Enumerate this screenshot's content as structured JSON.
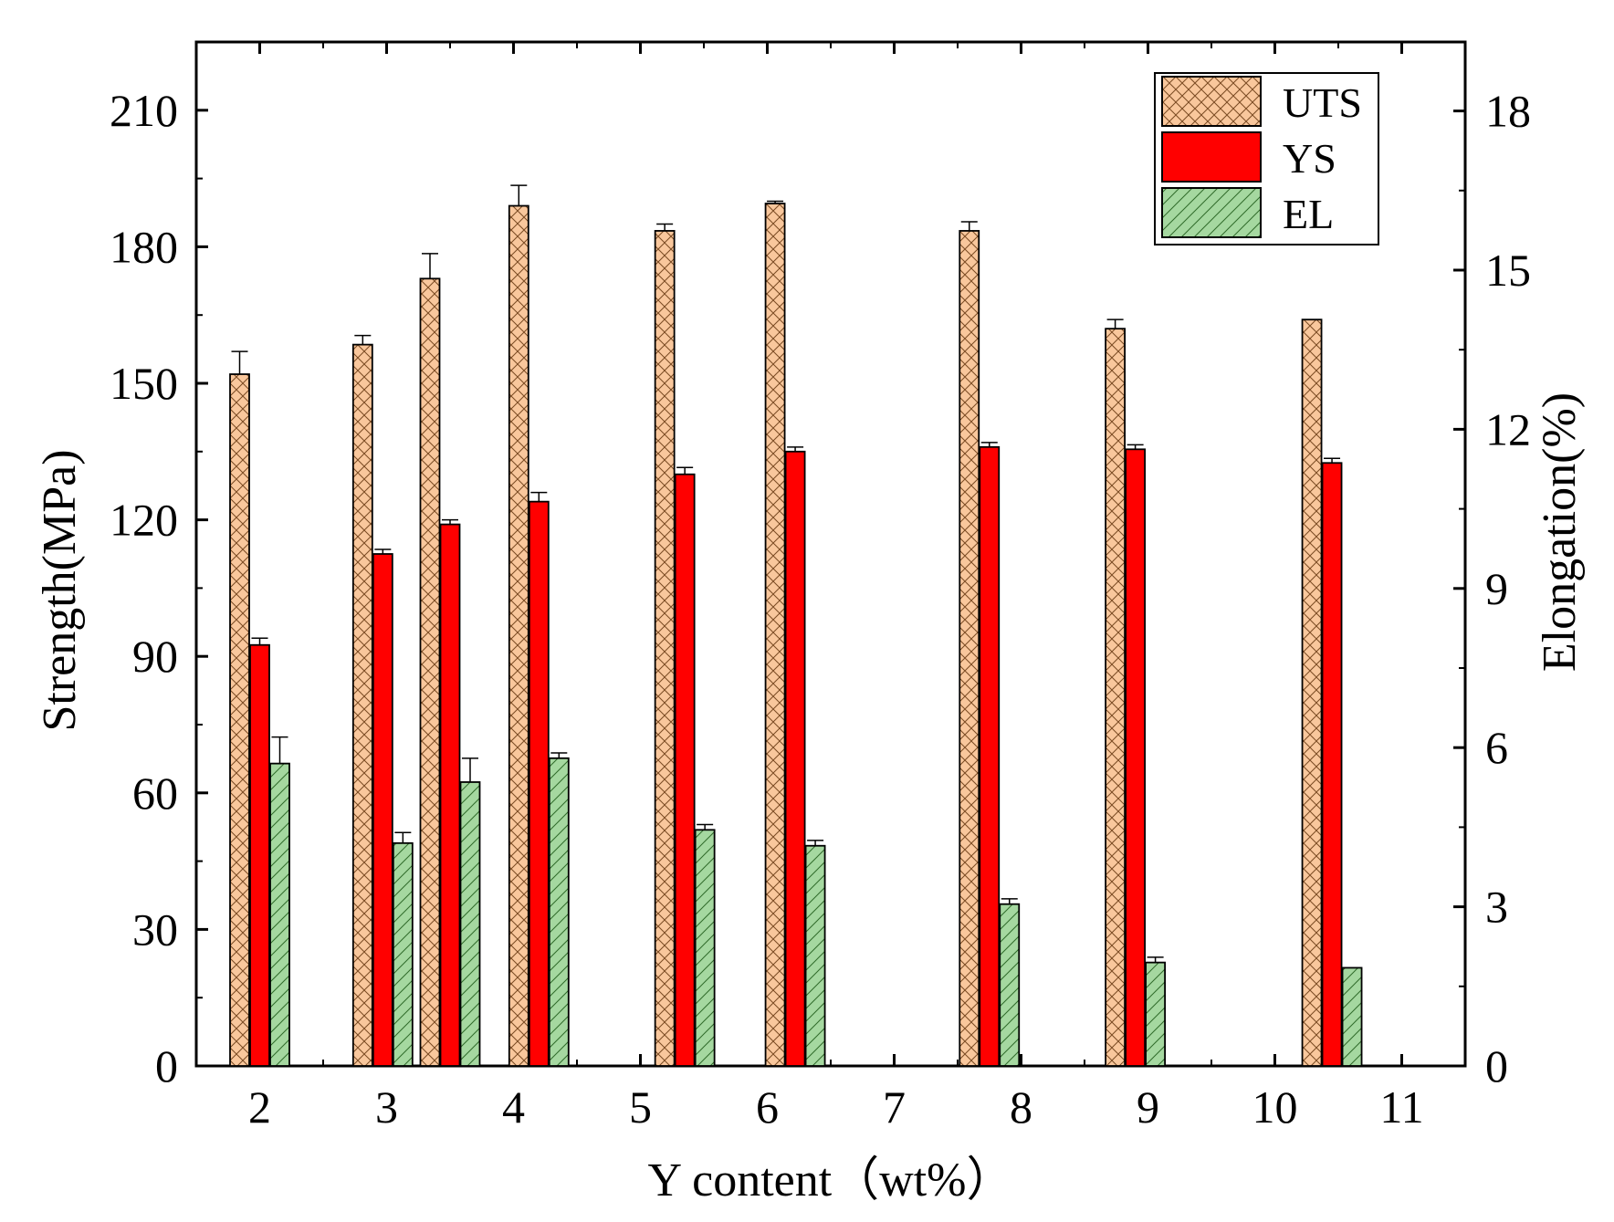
{
  "chart_data": {
    "type": "bar",
    "x_axis": {
      "label": "Y content（wt%）",
      "ticks": [
        2,
        3,
        4,
        5,
        6,
        7,
        8,
        9,
        10,
        11
      ],
      "range": [
        1.5,
        11.5
      ]
    },
    "y_axis_left": {
      "label": "Strength(MPa)",
      "ticks": [
        0,
        30,
        60,
        90,
        120,
        150,
        180,
        210
      ],
      "range": [
        0,
        225
      ]
    },
    "y_axis_right": {
      "label": "Elongation(%)",
      "ticks": [
        0,
        3,
        6,
        9,
        12,
        15,
        18
      ],
      "range": [
        0,
        19.3
      ]
    },
    "legend": {
      "position": "top-right",
      "items": [
        "UTS",
        "YS",
        "EL"
      ]
    },
    "series": [
      {
        "name": "UTS",
        "axis": "left",
        "color": "#f9c79c",
        "pattern": "crosshatch",
        "x": [
          2.0,
          2.97,
          3.5,
          4.2,
          5.35,
          6.22,
          7.75,
          8.9,
          10.45
        ],
        "values": [
          152,
          158.5,
          173,
          189,
          183.5,
          189.5,
          183.5,
          162,
          164
        ],
        "errors": [
          5,
          2,
          5.5,
          4.5,
          1.5,
          0.5,
          2,
          2,
          0
        ]
      },
      {
        "name": "YS",
        "axis": "left",
        "color": "#ff0000",
        "pattern": "solid",
        "x": [
          2.0,
          2.97,
          3.5,
          4.2,
          5.35,
          6.22,
          7.75,
          8.9,
          10.45
        ],
        "values": [
          92.5,
          112.5,
          119,
          124,
          130,
          135,
          136,
          135.5,
          132.5
        ],
        "errors": [
          1.5,
          1,
          1,
          2,
          1.5,
          1,
          1,
          1,
          1
        ]
      },
      {
        "name": "EL",
        "axis": "right",
        "color": "#a5d8a0",
        "pattern": "diagonal",
        "x": [
          2.0,
          2.97,
          3.5,
          4.2,
          5.35,
          6.22,
          7.75,
          8.9,
          10.45
        ],
        "values": [
          5.7,
          4.2,
          5.35,
          5.8,
          4.45,
          4.15,
          3.05,
          1.95,
          1.85
        ],
        "errors": [
          0.5,
          0.2,
          0.45,
          0.1,
          0.1,
          0.1,
          0.1,
          0.1,
          0
        ]
      }
    ]
  }
}
